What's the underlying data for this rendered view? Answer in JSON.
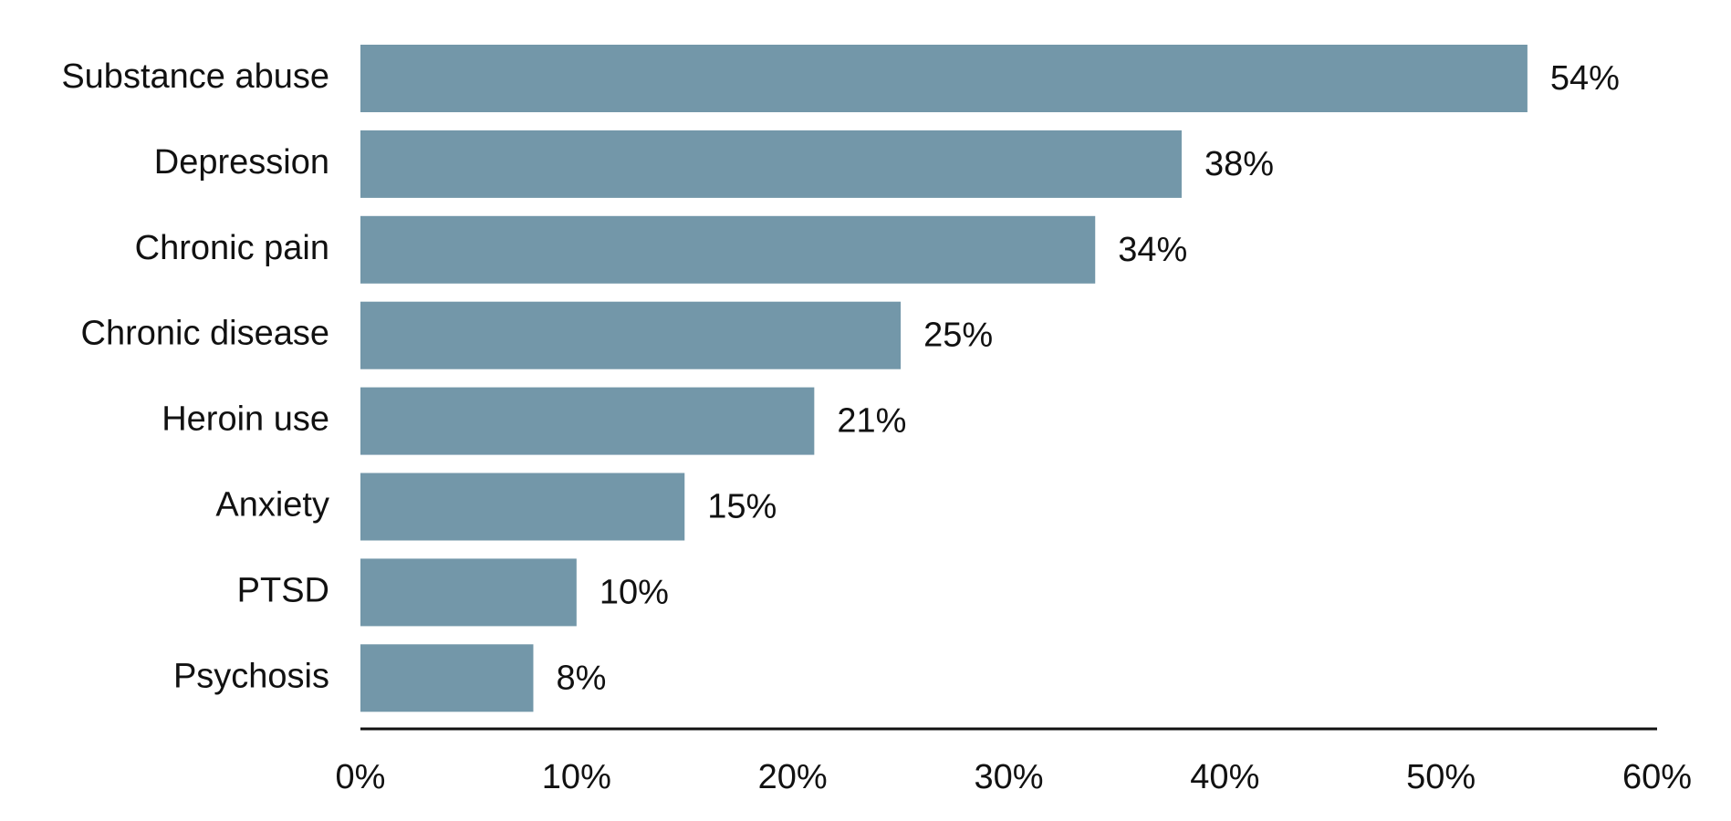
{
  "chart_data": {
    "type": "hbar",
    "categories": [
      "Substance abuse",
      "Depression",
      "Chronic pain",
      "Chronic disease",
      "Heroin use",
      "Anxiety",
      "PTSD",
      "Psychosis"
    ],
    "values": [
      54,
      38,
      34,
      25,
      21,
      15,
      10,
      8
    ],
    "value_labels": [
      "54%",
      "38%",
      "34%",
      "25%",
      "21%",
      "15%",
      "10%",
      "8%"
    ],
    "color": "#7397a9",
    "xlim": [
      0,
      60
    ],
    "xticks": [
      {
        "value": 0,
        "label": "0%"
      },
      {
        "value": 10,
        "label": "10%"
      },
      {
        "value": 20,
        "label": "20%"
      },
      {
        "value": 30,
        "label": "30%"
      },
      {
        "value": 40,
        "label": "40%"
      },
      {
        "value": 50,
        "label": "50%"
      },
      {
        "value": 60,
        "label": "60%"
      }
    ],
    "grid": false
  }
}
